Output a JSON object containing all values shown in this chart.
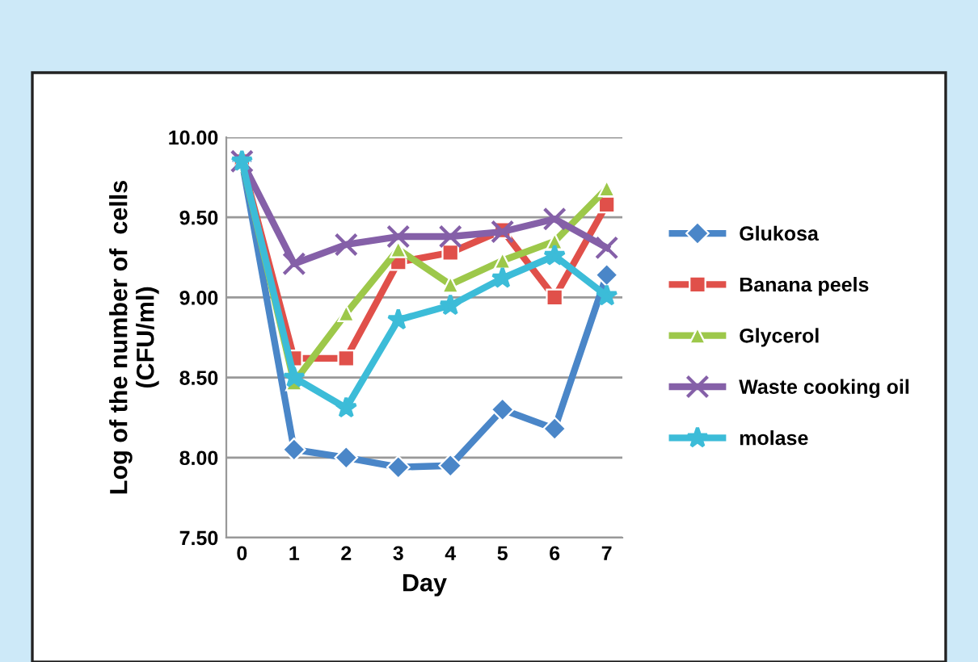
{
  "chart_data": {
    "type": "line",
    "xlabel": "Day",
    "ylabel": "Log of the number of  cells\n(CFU/ml)",
    "categories": [
      "0",
      "1",
      "2",
      "3",
      "4",
      "5",
      "6",
      "7"
    ],
    "ylim": [
      7.5,
      10.0
    ],
    "yticks": [
      {
        "value": 7.5,
        "label": "7.50"
      },
      {
        "value": 8.0,
        "label": "8.00"
      },
      {
        "value": 8.5,
        "label": "8.50"
      },
      {
        "value": 9.0,
        "label": "9.00"
      },
      {
        "value": 9.5,
        "label": "9.50"
      },
      {
        "value": 10.0,
        "label": "10.00"
      }
    ],
    "grid": "y",
    "legend": "right",
    "series": [
      {
        "name": "Glukosa",
        "color": "#4a86c8",
        "marker": "diamond",
        "values": [
          9.85,
          8.05,
          8.0,
          7.94,
          7.95,
          8.3,
          8.18,
          9.14
        ]
      },
      {
        "name": "Banana peels",
        "color": "#e0504a",
        "marker": "square",
        "values": [
          9.85,
          8.62,
          8.62,
          9.22,
          9.28,
          9.42,
          9.0,
          9.58
        ]
      },
      {
        "name": "Glycerol",
        "color": "#9dc84a",
        "marker": "triangle",
        "values": [
          9.85,
          8.47,
          8.9,
          9.3,
          9.08,
          9.23,
          9.35,
          9.68
        ]
      },
      {
        "name": "Waste cooking oil",
        "color": "#8560a8",
        "marker": "cross",
        "values": [
          9.85,
          9.21,
          9.33,
          9.38,
          9.38,
          9.41,
          9.49,
          9.31
        ]
      },
      {
        "name": "molase",
        "color": "#3cbcd8",
        "marker": "star",
        "values": [
          9.85,
          8.5,
          8.31,
          8.86,
          8.95,
          9.12,
          9.26,
          9.01
        ]
      }
    ]
  }
}
